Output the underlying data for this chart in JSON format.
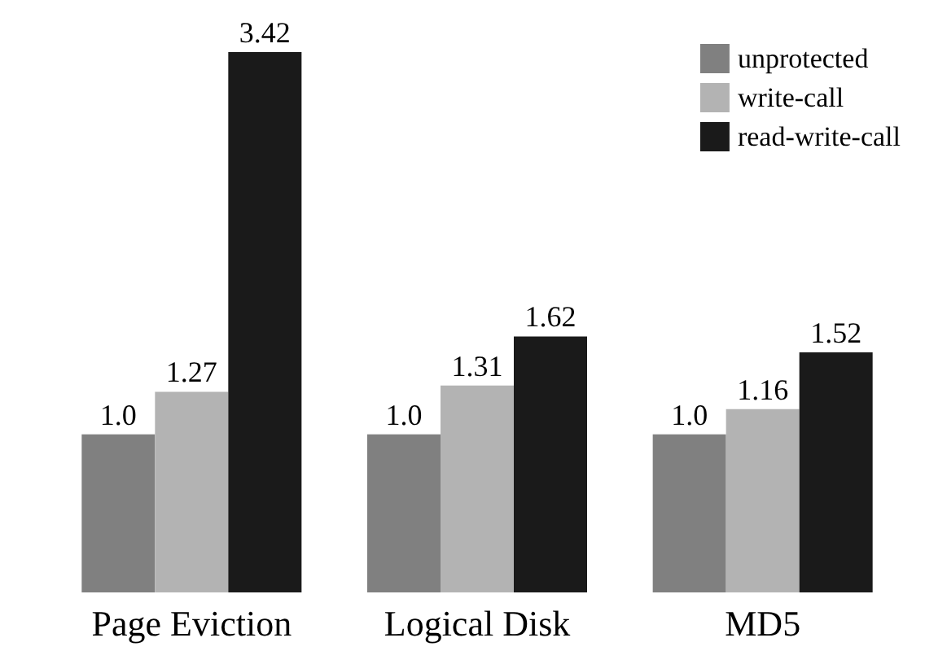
{
  "chart_data": {
    "type": "bar",
    "categories": [
      "Page Eviction",
      "Logical Disk",
      "MD5"
    ],
    "series": [
      {
        "name": "unprotected",
        "color": "#808080",
        "values": [
          1.0,
          1.0,
          1.0
        ],
        "value_labels": [
          "1.0",
          "1.0",
          "1.0"
        ]
      },
      {
        "name": "write-call",
        "color": "#b3b3b3",
        "values": [
          1.27,
          1.31,
          1.16
        ],
        "value_labels": [
          "1.27",
          "1.31",
          "1.16"
        ]
      },
      {
        "name": "read-write-call",
        "color": "#1a1a1a",
        "values": [
          3.42,
          1.62,
          1.52
        ],
        "value_labels": [
          "3.42",
          "1.62",
          "1.52"
        ]
      }
    ],
    "legend": "top right"
  }
}
